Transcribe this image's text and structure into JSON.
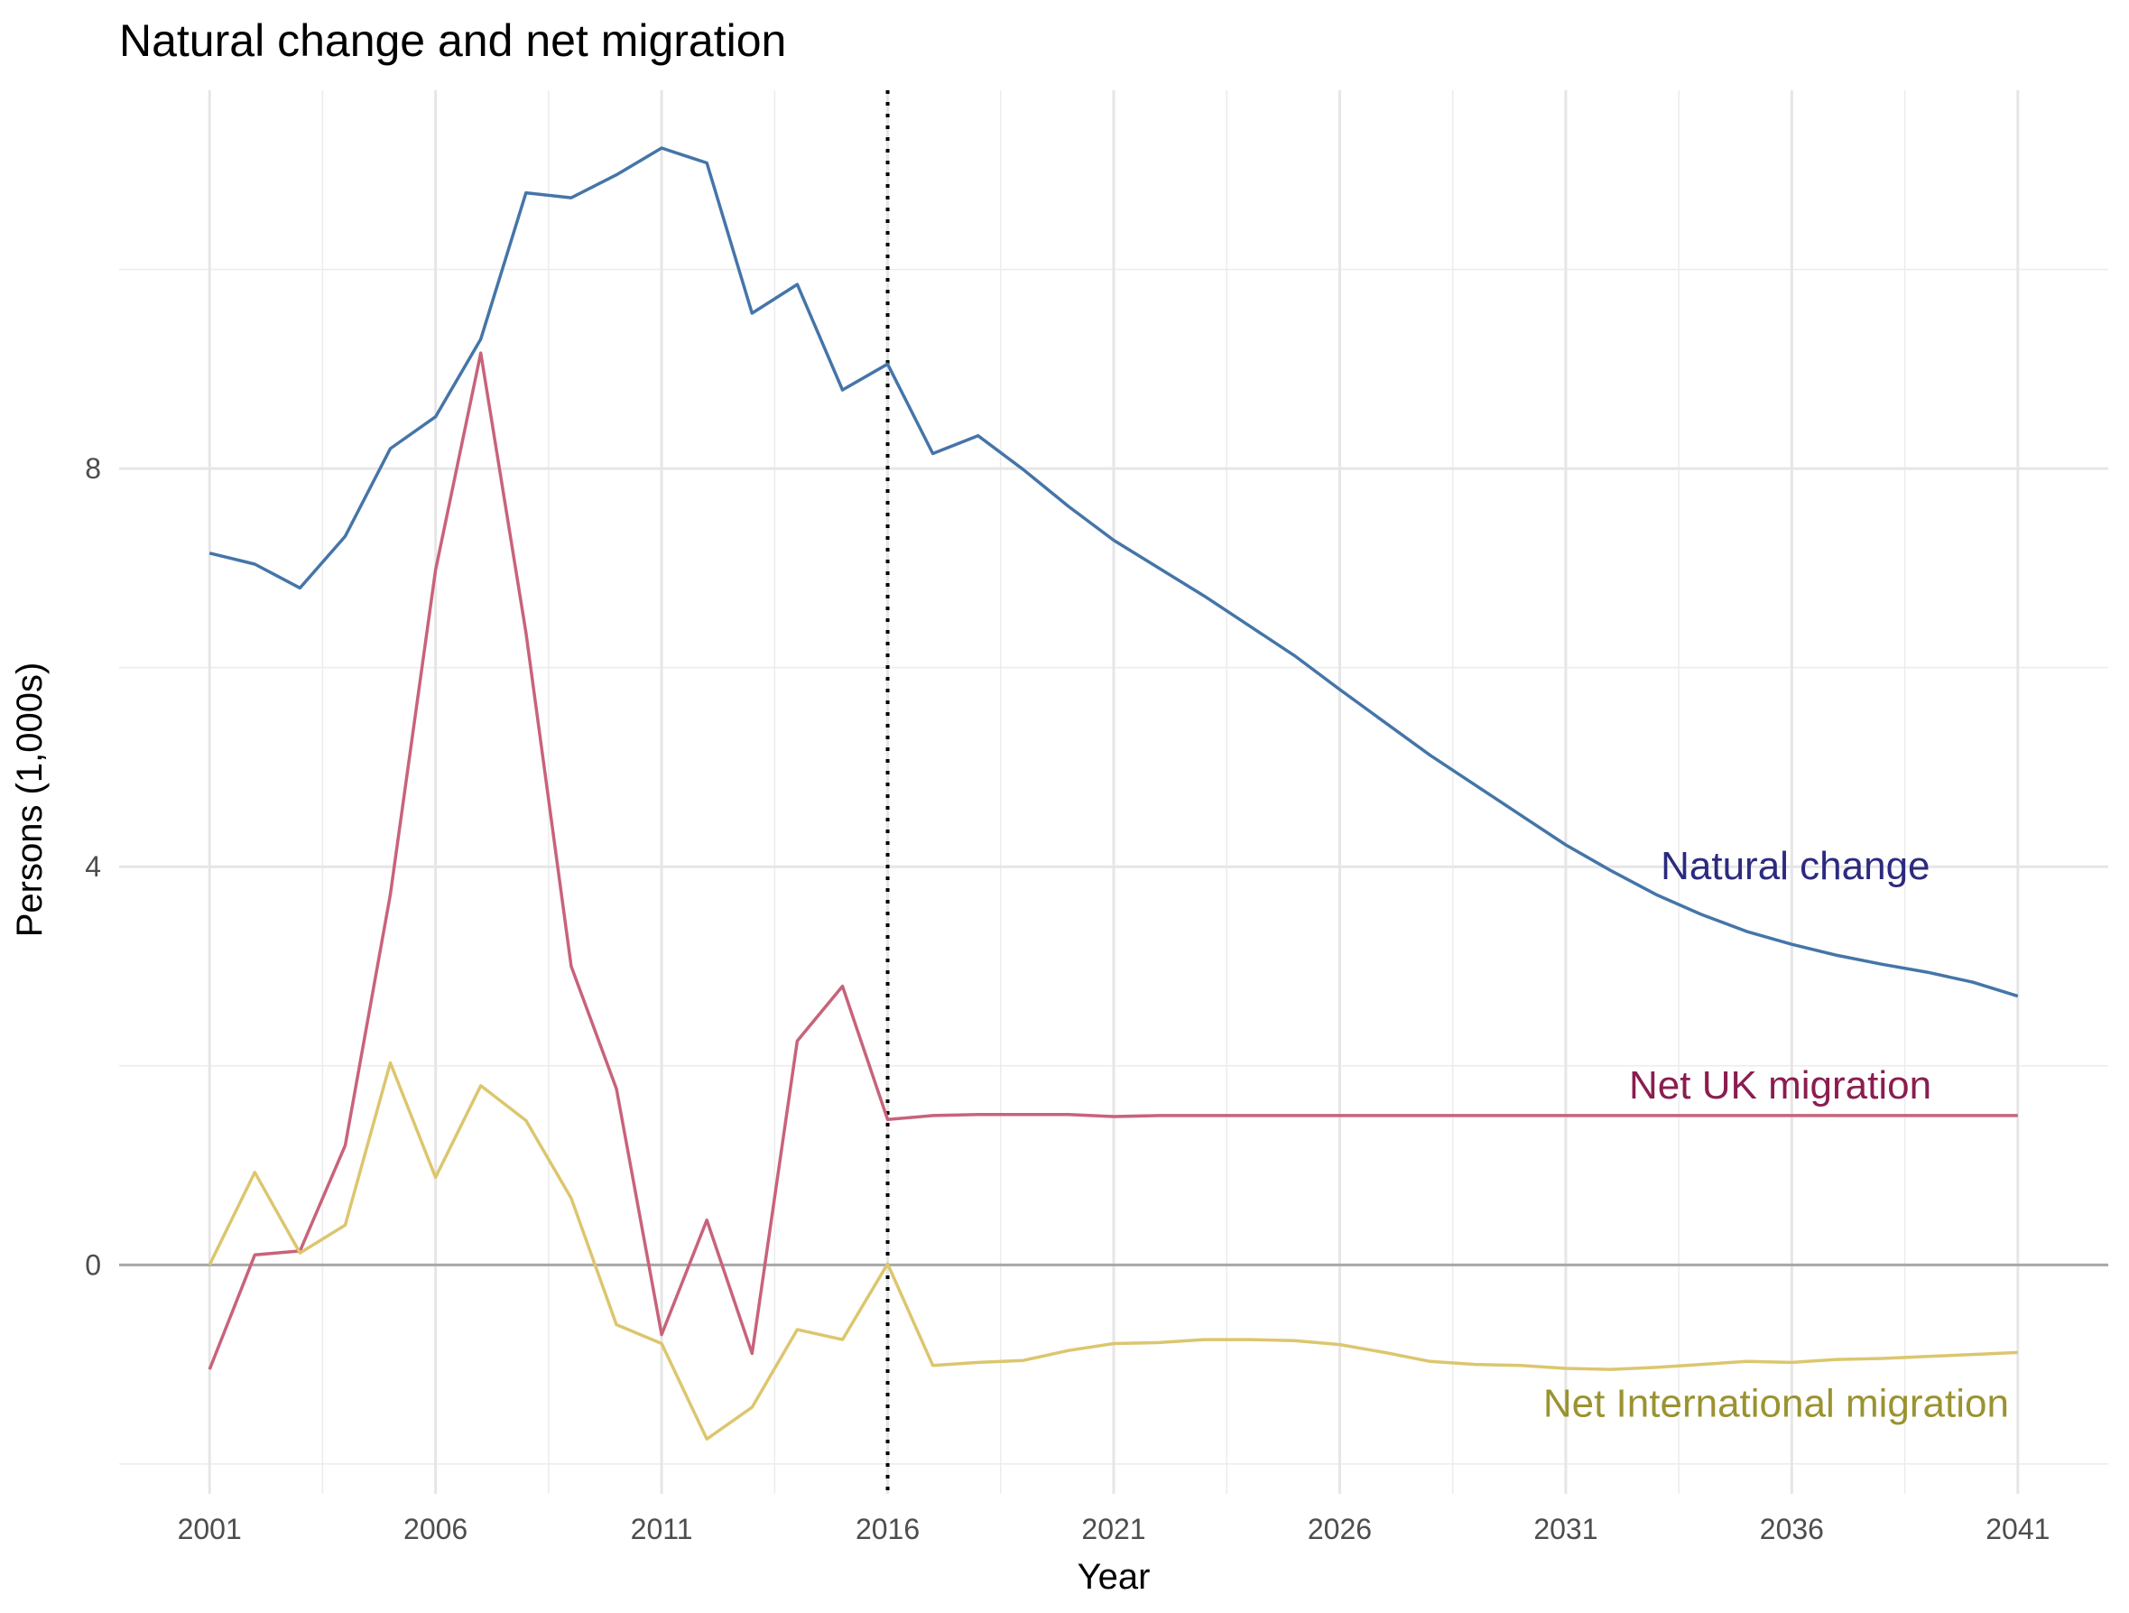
{
  "chart_data": {
    "type": "line",
    "title": "Natural change and net migration",
    "xlabel": "Year",
    "ylabel": "Persons (1,000s)",
    "xlim": [
      1999,
      2043
    ],
    "ylim": [
      -2.3,
      11.8
    ],
    "x_ticks": [
      2001,
      2006,
      2011,
      2016,
      2021,
      2026,
      2031,
      2036,
      2041
    ],
    "y_ticks": [
      0,
      4,
      8
    ],
    "grid": true,
    "reference_lines": {
      "horizontal_zero": 0,
      "vertical_dotted_x": 2016
    },
    "x": [
      2001,
      2002,
      2003,
      2004,
      2005,
      2006,
      2007,
      2008,
      2009,
      2010,
      2011,
      2012,
      2013,
      2014,
      2015,
      2016,
      2017,
      2018,
      2019,
      2020,
      2021,
      2022,
      2023,
      2024,
      2025,
      2026,
      2027,
      2028,
      2029,
      2030,
      2031,
      2032,
      2033,
      2034,
      2035,
      2036,
      2037,
      2038,
      2039,
      2040,
      2041
    ],
    "series": [
      {
        "name": "Natural change",
        "color": "#4575a8",
        "label_color": "#2c2a7f",
        "values": [
          7.15,
          7.04,
          6.8,
          7.32,
          8.2,
          8.52,
          9.3,
          10.77,
          10.72,
          10.95,
          11.22,
          11.07,
          9.56,
          9.85,
          8.79,
          9.05,
          8.15,
          8.33,
          7.99,
          7.62,
          7.28,
          7.0,
          6.72,
          6.42,
          6.12,
          5.78,
          5.45,
          5.12,
          4.82,
          4.52,
          4.22,
          3.96,
          3.72,
          3.52,
          3.35,
          3.22,
          3.11,
          3.02,
          2.94,
          2.84,
          2.7
        ]
      },
      {
        "name": "Net UK migration",
        "color": "#c8637a",
        "label_color": "#8a1d4f",
        "values": [
          -1.05,
          0.1,
          0.14,
          1.2,
          3.72,
          6.98,
          9.16,
          6.35,
          3.0,
          1.77,
          -0.7,
          0.45,
          -0.89,
          2.25,
          2.8,
          1.46,
          1.5,
          1.51,
          1.51,
          1.51,
          1.49,
          1.5,
          1.5,
          1.5,
          1.5,
          1.5,
          1.5,
          1.5,
          1.5,
          1.5,
          1.5,
          1.5,
          1.5,
          1.5,
          1.5,
          1.5,
          1.5,
          1.5,
          1.5,
          1.5,
          1.5
        ]
      },
      {
        "name": "Net International migration",
        "color": "#dcc66e",
        "label_color": "#9a9330",
        "values": [
          0.0,
          0.93,
          0.12,
          0.4,
          2.03,
          0.88,
          1.8,
          1.45,
          0.67,
          -0.6,
          -0.79,
          -1.75,
          -1.43,
          -0.65,
          -0.75,
          0.01,
          -1.01,
          -0.98,
          -0.96,
          -0.86,
          -0.79,
          -0.78,
          -0.75,
          -0.75,
          -0.76,
          -0.8,
          -0.88,
          -0.97,
          -1.0,
          -1.01,
          -1.04,
          -1.05,
          -1.03,
          -1.0,
          -0.97,
          -0.98,
          -0.95,
          -0.94,
          -0.92,
          -0.9,
          -0.88
        ]
      }
    ],
    "series_labels": [
      {
        "text": "Natural change",
        "x": 2033.1,
        "y": 4.0
      },
      {
        "text": "Net UK migration",
        "x": 2032.4,
        "y": 1.8
      },
      {
        "text": "Net International migration",
        "x": 2030.5,
        "y": -1.4
      }
    ]
  }
}
